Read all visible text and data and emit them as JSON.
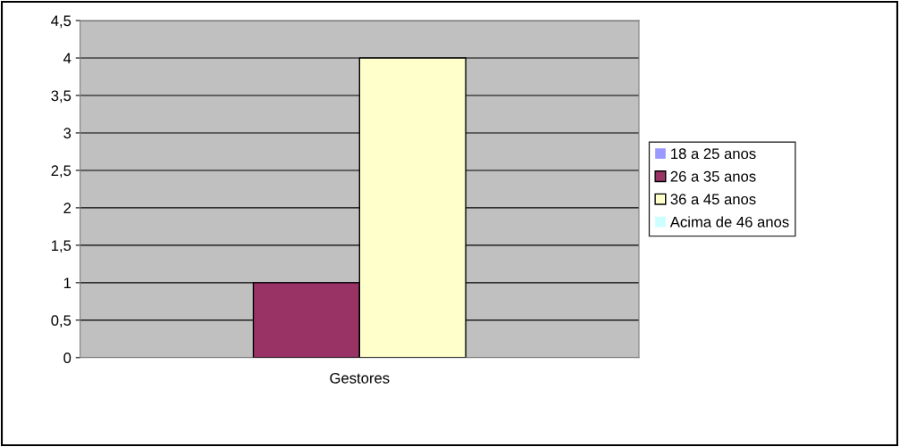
{
  "chart_data": {
    "type": "bar",
    "categories": [
      "Gestores"
    ],
    "series": [
      {
        "name": "18 a 25 anos",
        "color": "#9999ff",
        "values": [
          0
        ]
      },
      {
        "name": "26 a 35 anos",
        "color": "#993366",
        "values": [
          1
        ]
      },
      {
        "name": "36 a 45 anos",
        "color": "#ffffcc",
        "values": [
          4
        ]
      },
      {
        "name": "Acima de 46 anos",
        "color": "#ccffff",
        "values": [
          0
        ]
      }
    ],
    "ylim": [
      0,
      4.5
    ],
    "yticks": [
      0,
      {
        "value": 0.5,
        "label": "0,5"
      },
      1,
      {
        "value": 1.5,
        "label": "1,5"
      },
      2,
      {
        "value": 2.5,
        "label": "2,5"
      },
      3,
      {
        "value": 3.5,
        "label": "3,5"
      },
      4,
      {
        "value": 4.5,
        "label": "4,5"
      }
    ],
    "grid": "y",
    "legend": "right"
  }
}
